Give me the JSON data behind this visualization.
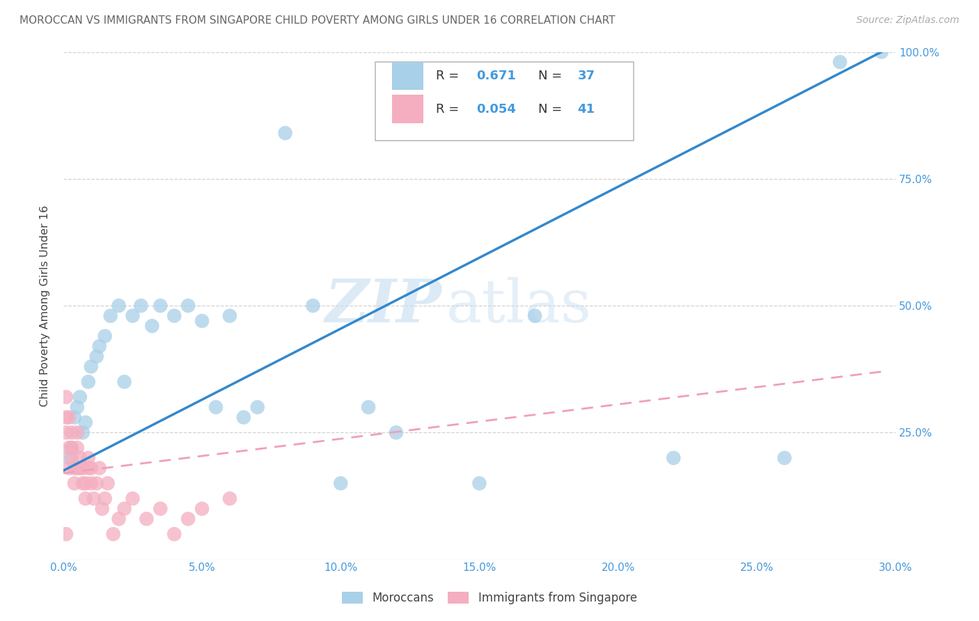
{
  "title": "MOROCCAN VS IMMIGRANTS FROM SINGAPORE CHILD POVERTY AMONG GIRLS UNDER 16 CORRELATION CHART",
  "source": "Source: ZipAtlas.com",
  "ylabel": "Child Poverty Among Girls Under 16",
  "xlim": [
    0,
    0.3
  ],
  "ylim": [
    0,
    1.0
  ],
  "xticks": [
    0.0,
    0.05,
    0.1,
    0.15,
    0.2,
    0.25,
    0.3
  ],
  "xtick_labels": [
    "0.0%",
    "5.0%",
    "10.0%",
    "15.0%",
    "20.0%",
    "25.0%",
    "30.0%"
  ],
  "yticks": [
    0.0,
    0.25,
    0.5,
    0.75,
    1.0
  ],
  "ytick_labels": [
    "",
    "25.0%",
    "50.0%",
    "75.0%",
    "100.0%"
  ],
  "right_ytick_labels": [
    "",
    "25.0%",
    "50.0%",
    "75.0%",
    "100.0%"
  ],
  "moroccan_color": "#a8d0e8",
  "singapore_color": "#f4aec0",
  "regression_blue": "#3388cc",
  "regression_pink": "#f0a0b8",
  "moroccan_R": 0.671,
  "moroccan_N": 37,
  "singapore_R": 0.054,
  "singapore_N": 41,
  "moroccan_x": [
    0.002,
    0.003,
    0.004,
    0.005,
    0.006,
    0.007,
    0.008,
    0.009,
    0.01,
    0.012,
    0.013,
    0.015,
    0.017,
    0.02,
    0.022,
    0.025,
    0.028,
    0.032,
    0.035,
    0.04,
    0.045,
    0.05,
    0.055,
    0.06,
    0.065,
    0.07,
    0.08,
    0.09,
    0.1,
    0.11,
    0.12,
    0.15,
    0.17,
    0.22,
    0.26,
    0.28,
    0.295
  ],
  "moroccan_y": [
    0.2,
    0.22,
    0.28,
    0.3,
    0.32,
    0.25,
    0.27,
    0.35,
    0.38,
    0.4,
    0.42,
    0.44,
    0.48,
    0.5,
    0.35,
    0.48,
    0.5,
    0.46,
    0.5,
    0.48,
    0.5,
    0.47,
    0.3,
    0.48,
    0.28,
    0.3,
    0.84,
    0.5,
    0.15,
    0.3,
    0.25,
    0.15,
    0.48,
    0.2,
    0.2,
    0.98,
    1.0
  ],
  "singapore_x": [
    0.001,
    0.001,
    0.001,
    0.002,
    0.002,
    0.002,
    0.003,
    0.003,
    0.003,
    0.004,
    0.004,
    0.005,
    0.005,
    0.005,
    0.006,
    0.006,
    0.007,
    0.007,
    0.008,
    0.008,
    0.009,
    0.009,
    0.01,
    0.01,
    0.011,
    0.012,
    0.013,
    0.014,
    0.015,
    0.016,
    0.018,
    0.02,
    0.022,
    0.025,
    0.03,
    0.035,
    0.04,
    0.045,
    0.05,
    0.06,
    0.001
  ],
  "singapore_y": [
    0.28,
    0.25,
    0.32,
    0.28,
    0.22,
    0.18,
    0.2,
    0.22,
    0.25,
    0.18,
    0.15,
    0.18,
    0.22,
    0.25,
    0.18,
    0.2,
    0.15,
    0.18,
    0.12,
    0.15,
    0.18,
    0.2,
    0.15,
    0.18,
    0.12,
    0.15,
    0.18,
    0.1,
    0.12,
    0.15,
    0.05,
    0.08,
    0.1,
    0.12,
    0.08,
    0.1,
    0.05,
    0.08,
    0.1,
    0.12,
    0.05
  ],
  "moroccan_line_x0": 0.0,
  "moroccan_line_y0": 0.175,
  "moroccan_line_x1": 0.295,
  "moroccan_line_y1": 1.0,
  "singapore_line_x0": 0.0,
  "singapore_line_y0": 0.17,
  "singapore_line_x1": 0.295,
  "singapore_line_y1": 0.37,
  "watermark_zip": "ZIP",
  "watermark_atlas": "atlas",
  "background_color": "#ffffff",
  "grid_color": "#cccccc",
  "title_color": "#666666",
  "axis_tick_color": "#4499dd",
  "legend_R_color": "#4499dd",
  "legend_label_color": "#333333"
}
